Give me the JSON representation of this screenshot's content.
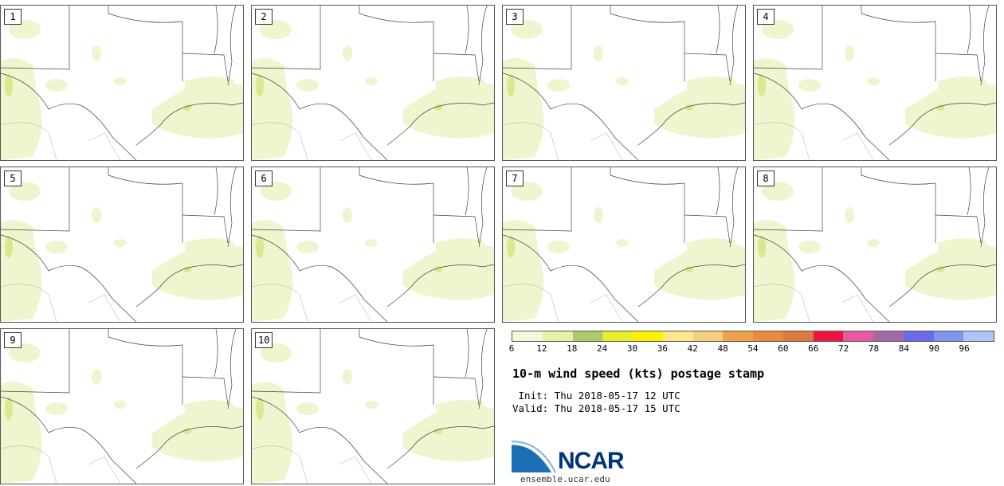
{
  "stamps": [
    {
      "label": "1"
    },
    {
      "label": "2"
    },
    {
      "label": "3"
    },
    {
      "label": "4"
    },
    {
      "label": "5"
    },
    {
      "label": "6"
    },
    {
      "label": "7"
    },
    {
      "label": "8"
    },
    {
      "label": "9"
    },
    {
      "label": "10"
    }
  ],
  "legend": {
    "colors": [
      "#f5f8de",
      "#e4f1a8",
      "#a9cb6a",
      "#e6ee2e",
      "#fff000",
      "#ffe88a",
      "#f7cd80",
      "#f0a04a",
      "#e98a3c",
      "#dd7a40",
      "#ee1340",
      "#e859a0",
      "#a06aa8",
      "#6a6aea",
      "#7f96ee",
      "#b0c4f8"
    ],
    "ticks": [
      "6",
      "12",
      "18",
      "24",
      "30",
      "36",
      "42",
      "48",
      "54",
      "60",
      "66",
      "72",
      "78",
      "84",
      "90",
      "96"
    ]
  },
  "title": "10-m wind speed (kts) postage stamp",
  "init": " Init: Thu 2018-05-17 12 UTC",
  "valid": "Valid: Thu 2018-05-17 15 UTC",
  "logo_text": "NCAR",
  "site": "ensemble.ucar.edu"
}
